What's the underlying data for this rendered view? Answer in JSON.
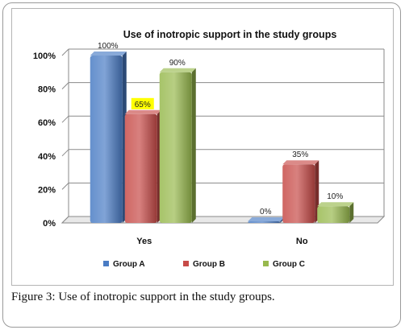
{
  "chart_data": {
    "type": "bar",
    "title": "Use of inotropic support  in the study groups",
    "categories": [
      "Yes",
      "No"
    ],
    "series": [
      {
        "name": "Group A",
        "values": [
          100,
          0
        ],
        "labels": [
          "100%",
          "0%"
        ],
        "color": "#4a7cc4"
      },
      {
        "name": "Group B",
        "values": [
          65,
          35
        ],
        "labels": [
          "65%",
          "35%"
        ],
        "color": "#c74b48"
      },
      {
        "name": "Group C",
        "values": [
          90,
          10
        ],
        "labels": [
          "90%",
          "10%"
        ],
        "color": "#98b94e"
      }
    ],
    "highlighted_label": {
      "series": 1,
      "category": 0,
      "background": "#ffff00"
    },
    "yticks": [
      "0%",
      "20%",
      "40%",
      "60%",
      "80%",
      "100%"
    ],
    "ylim": [
      0,
      100
    ],
    "grid": true,
    "legend_position": "bottom",
    "style": "3d"
  },
  "caption": {
    "label": "Figure 3:",
    "text": " Use of inotropic support in the study groups."
  }
}
